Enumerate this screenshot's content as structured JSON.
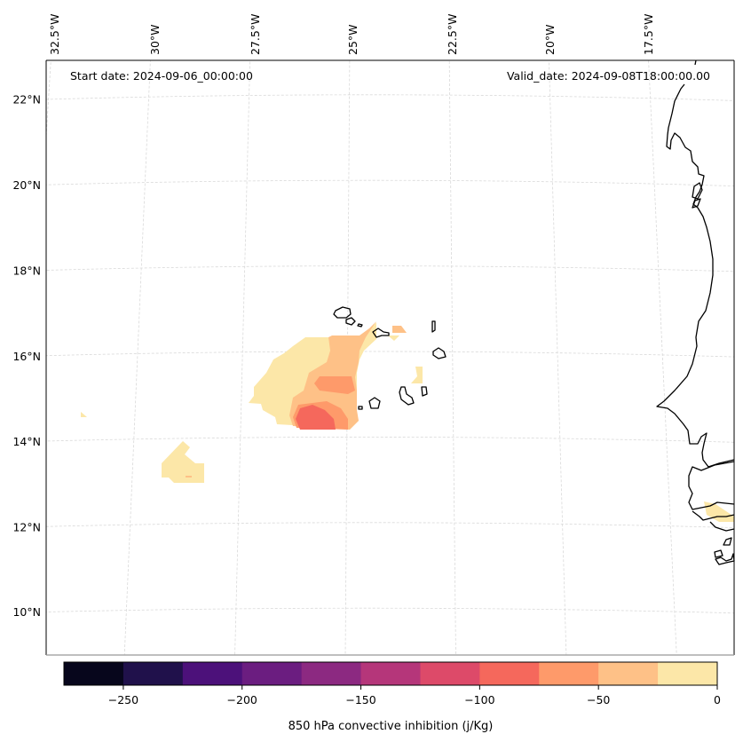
{
  "figure": {
    "start_date_text": "Start date: 2024-09-06_00:00:00",
    "valid_date_text": "Valid_date: 2024-09-08T18:00:00.00",
    "colorbar_label": "850 hPa convective inhibition (j/Kg)"
  },
  "colors": {
    "coastline": "#000000",
    "gridline": "#d9d9d9",
    "frame": "#000000"
  },
  "chart_data": {
    "type": "heatmap",
    "title": "",
    "variable": "850 hPa convective inhibition",
    "units": "j/Kg",
    "map": {
      "lon_range": [
        -33.0,
        -15.5
      ],
      "lat_range": [
        9.0,
        22.8
      ],
      "lon_ticks": [
        -32.5,
        -30,
        -27.5,
        -25,
        -22.5,
        -20,
        -17.5
      ],
      "lon_tick_labels": [
        "32.5°W",
        "30°W",
        "27.5°W",
        "25°W",
        "22.5°W",
        "20°W",
        "17.5°W"
      ],
      "lat_ticks": [
        22,
        20,
        18,
        16,
        14,
        12,
        10
      ],
      "lat_tick_labels": [
        "22°N",
        "20°N",
        "18°N",
        "16°N",
        "14°N",
        "12°N",
        "10°N"
      ],
      "grid": true,
      "annotations": {
        "top_left": "Start date: 2024-09-06_00:00:00",
        "top_right": "Valid_date: 2024-09-08T18:00:00.00"
      }
    },
    "colorbar": {
      "orientation": "horizontal",
      "placement": "bottom",
      "levels": [
        -275,
        -250,
        -225,
        -200,
        -175,
        -150,
        -125,
        -100,
        -75,
        -50,
        -25,
        0
      ],
      "colors": [
        "#07061c",
        "#20114b",
        "#4c117a",
        "#6b1d80",
        "#8c2981",
        "#b5367a",
        "#dd4a69",
        "#f5685c",
        "#fe9a6a",
        "#fec187",
        "#fce7a8"
      ],
      "tick_values": [
        -250,
        -200,
        -150,
        -100,
        -50,
        0
      ],
      "tick_labels": [
        "−250",
        "−200",
        "−150",
        "−100",
        "−50",
        "0"
      ],
      "label": "850 hPa convective inhibition (j/Kg)"
    },
    "regions": [
      {
        "name": "main-cin-field-outer",
        "band": [
          -25,
          0
        ],
        "approx_center": {
          "lon": -25.5,
          "lat": 15.2
        }
      },
      {
        "name": "main-cin-field-mid",
        "band": [
          -50,
          -25
        ],
        "approx_center": {
          "lon": -24.8,
          "lat": 15.0
        }
      },
      {
        "name": "main-cin-field-inner",
        "band": [
          -75,
          -50
        ],
        "approx_center": {
          "lon": -24.8,
          "lat": 14.9
        }
      },
      {
        "name": "main-cin-field-core",
        "band": [
          -100,
          -75
        ],
        "approx_center": {
          "lon": -25.2,
          "lat": 14.4
        }
      },
      {
        "name": "southwest-patch",
        "band": [
          -25,
          0
        ],
        "approx_center": {
          "lon": -29.4,
          "lat": 13.2
        }
      },
      {
        "name": "west-speck",
        "band": [
          -25,
          0
        ],
        "approx_center": {
          "lon": -32.6,
          "lat": 14.5
        }
      },
      {
        "name": "senegal-coast-patch",
        "band": [
          -25,
          0
        ],
        "approx_center": {
          "lon": -16.3,
          "lat": 12.3
        }
      }
    ]
  }
}
